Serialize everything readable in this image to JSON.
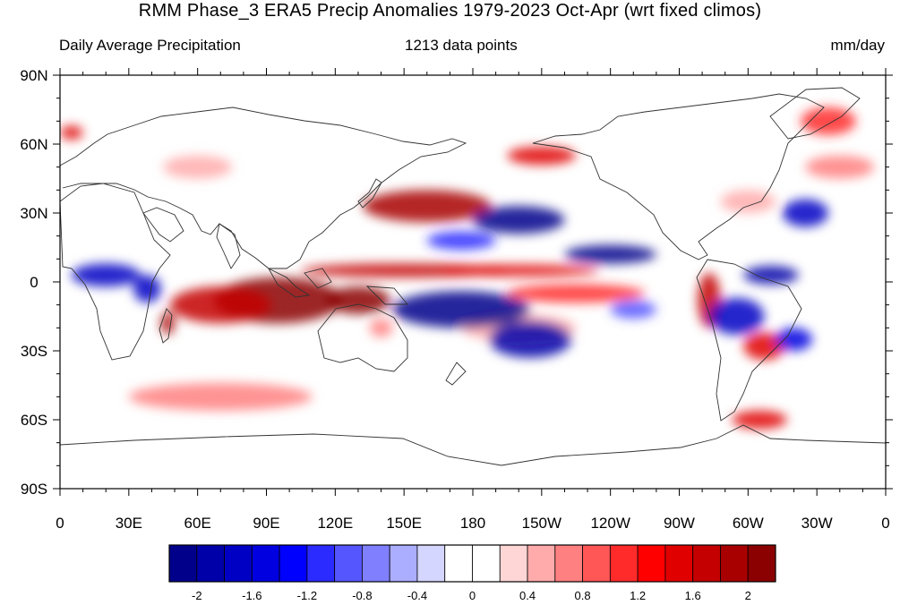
{
  "title": "RMM Phase_3 ERA5 Precip Anomalies 1979-2023 Oct-Apr (wrt fixed climos)",
  "subtitle_left": "Daily Average Precipitation",
  "subtitle_center": "1213 data points",
  "subtitle_right": "mm/day",
  "lat_labels": [
    {
      "label": "90N",
      "lat": 90
    },
    {
      "label": "60N",
      "lat": 60
    },
    {
      "label": "30N",
      "lat": 30
    },
    {
      "label": "0",
      "lat": 0
    },
    {
      "label": "30S",
      "lat": -30
    },
    {
      "label": "60S",
      "lat": -60
    },
    {
      "label": "90S",
      "lat": -90
    }
  ],
  "lon_labels": [
    {
      "label": "0",
      "lon": 0
    },
    {
      "label": "30E",
      "lon": 30
    },
    {
      "label": "60E",
      "lon": 60
    },
    {
      "label": "90E",
      "lon": 90
    },
    {
      "label": "120E",
      "lon": 120
    },
    {
      "label": "150E",
      "lon": 150
    },
    {
      "label": "180",
      "lon": 180
    },
    {
      "label": "150W",
      "lon": 210
    },
    {
      "label": "120W",
      "lon": 240
    },
    {
      "label": "90W",
      "lon": 270
    },
    {
      "label": "60W",
      "lon": 300
    },
    {
      "label": "30W",
      "lon": 330
    },
    {
      "label": "0",
      "lon": 360
    }
  ],
  "colorbar": {
    "colors": [
      "#00008b",
      "#0000a8",
      "#0000c4",
      "#0000e1",
      "#0000ff",
      "#2b2bff",
      "#5656ff",
      "#8080ff",
      "#abadff",
      "#d5d6ff",
      "#ffffff",
      "#ffffff",
      "#ffd6d6",
      "#ffabab",
      "#ff8080",
      "#ff5656",
      "#ff2b2b",
      "#ff0000",
      "#e10000",
      "#c40000",
      "#a80000",
      "#8b0000"
    ],
    "tick_labels": [
      "-2",
      "-1.6",
      "-1.2",
      "-0.8",
      "-0.4",
      "0",
      "0.4",
      "0.8",
      "1.2",
      "1.6",
      "2"
    ]
  },
  "anomaly_regions": [
    {
      "lon": 95,
      "lat": -8,
      "rx": 28,
      "ry": 10,
      "v": 2.2
    },
    {
      "lon": 130,
      "lat": -8,
      "rx": 14,
      "ry": 6,
      "v": 2.2
    },
    {
      "lon": 70,
      "lat": -10,
      "rx": 22,
      "ry": 8,
      "v": 1.8
    },
    {
      "lon": 150,
      "lat": 5,
      "rx": 45,
      "ry": 3,
      "v": 1.8
    },
    {
      "lon": 200,
      "lat": 5,
      "rx": 35,
      "ry": 2.5,
      "v": 1.6
    },
    {
      "lon": 160,
      "lat": 33,
      "rx": 28,
      "ry": 7,
      "v": 2.0
    },
    {
      "lon": 210,
      "lat": 55,
      "rx": 15,
      "ry": 4,
      "v": 1.6
    },
    {
      "lon": 225,
      "lat": -5,
      "rx": 30,
      "ry": 4,
      "v": 1.2
    },
    {
      "lon": 283,
      "lat": -8,
      "rx": 5,
      "ry": 12,
      "v": 1.8
    },
    {
      "lon": 307,
      "lat": -28,
      "rx": 9,
      "ry": 6,
      "v": 1.6
    },
    {
      "lon": 305,
      "lat": -60,
      "rx": 12,
      "ry": 4,
      "v": 1.6
    },
    {
      "lon": 47,
      "lat": -18,
      "rx": 3,
      "ry": 5,
      "v": 2.0
    },
    {
      "lon": 335,
      "lat": 70,
      "rx": 12,
      "ry": 6,
      "v": 1.2
    },
    {
      "lon": 70,
      "lat": -50,
      "rx": 40,
      "ry": 6,
      "v": 0.8
    },
    {
      "lon": 340,
      "lat": 50,
      "rx": 15,
      "ry": 5,
      "v": 0.8
    },
    {
      "lon": 5,
      "lat": 65,
      "rx": 5,
      "ry": 3,
      "v": 1.6
    },
    {
      "lon": 200,
      "lat": -20,
      "rx": 25,
      "ry": 6,
      "v": 0.6
    },
    {
      "lon": 140,
      "lat": -20,
      "rx": 5,
      "ry": 4,
      "v": 0.8
    },
    {
      "lon": 20,
      "lat": 3,
      "rx": 15,
      "ry": 5,
      "v": -1.6
    },
    {
      "lon": 38,
      "lat": -3,
      "rx": 6,
      "ry": 6,
      "v": -1.6
    },
    {
      "lon": 175,
      "lat": -12,
      "rx": 30,
      "ry": 8,
      "v": -2.2
    },
    {
      "lon": 205,
      "lat": -25,
      "rx": 18,
      "ry": 8,
      "v": -1.8
    },
    {
      "lon": 200,
      "lat": 27,
      "rx": 20,
      "ry": 6,
      "v": -2.0
    },
    {
      "lon": 240,
      "lat": 12,
      "rx": 20,
      "ry": 4,
      "v": -2.0
    },
    {
      "lon": 310,
      "lat": 3,
      "rx": 12,
      "ry": 4,
      "v": -1.8
    },
    {
      "lon": 295,
      "lat": -15,
      "rx": 12,
      "ry": 8,
      "v": -1.6
    },
    {
      "lon": 320,
      "lat": -25,
      "rx": 8,
      "ry": 5,
      "v": -1.4
    },
    {
      "lon": 325,
      "lat": 30,
      "rx": 10,
      "ry": 6,
      "v": -1.6
    },
    {
      "lon": 175,
      "lat": 18,
      "rx": 15,
      "ry": 4,
      "v": -1.0
    },
    {
      "lon": 250,
      "lat": -12,
      "rx": 10,
      "ry": 4,
      "v": -0.8
    },
    {
      "lon": 300,
      "lat": 35,
      "rx": 12,
      "ry": 5,
      "v": 0.6
    },
    {
      "lon": 60,
      "lat": 50,
      "rx": 15,
      "ry": 5,
      "v": 0.5
    }
  ]
}
